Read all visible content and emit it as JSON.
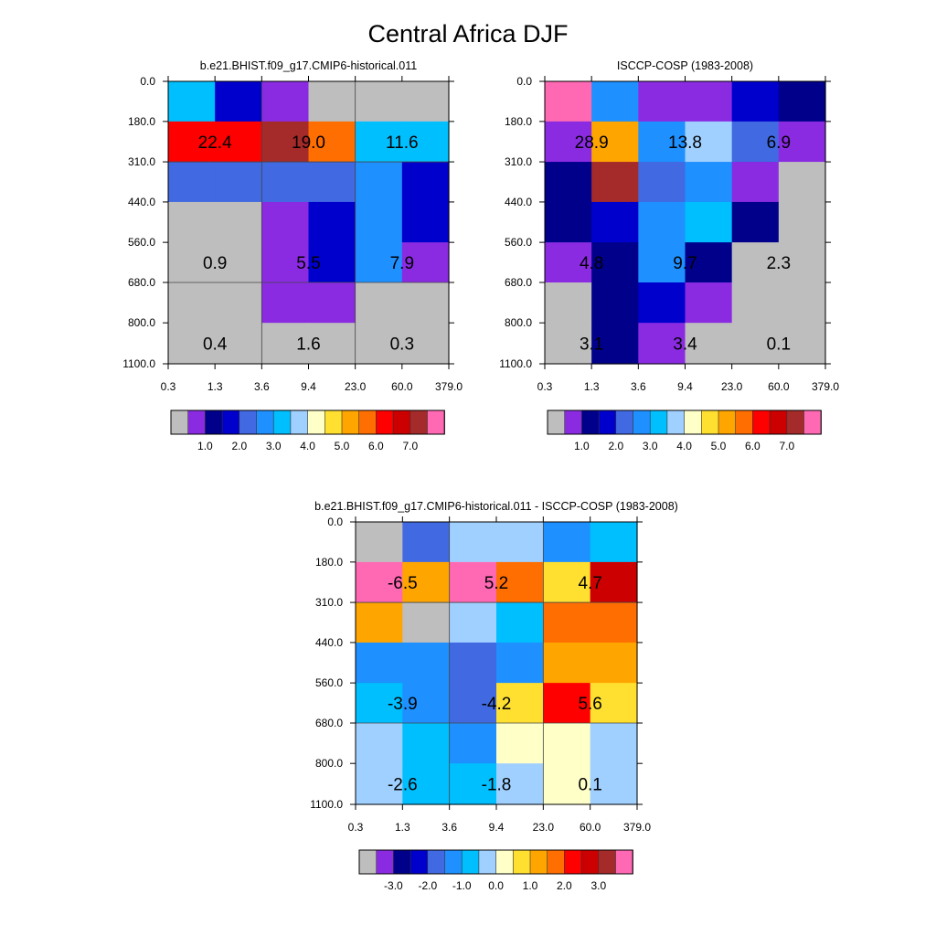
{
  "figure_title": "Central Africa DJF",
  "tau_ticks": [
    "0.3",
    "1.3",
    "3.6",
    "9.4",
    "23.0",
    "60.0",
    "379.0"
  ],
  "pressure_ticks": [
    "0.0",
    "180.0",
    "310.0",
    "440.0",
    "560.0",
    "680.0",
    "800.0",
    "1100.0"
  ],
  "colors": {
    "palette_abs": [
      "#bebebe",
      "#8a2be2",
      "#00008b",
      "#0000cd",
      "#4169e1",
      "#1e90ff",
      "#00bfff",
      "#a0d0ff",
      "#ffffc8",
      "#ffe030",
      "#ffa500",
      "#ff6e00",
      "#ff0000",
      "#cc0000",
      "#a52a2a",
      "#ff69b4"
    ],
    "palette_diff": [
      "#bebebe",
      "#8a2be2",
      "#00008b",
      "#0000cd",
      "#4169e1",
      "#1e90ff",
      "#00bfff",
      "#a0d0ff",
      "#ffffc8",
      "#ffe030",
      "#ffa500",
      "#ff6e00",
      "#ff0000",
      "#cc0000",
      "#a52a2a",
      "#ff69b4"
    ]
  },
  "chart_data": [
    {
      "type": "heatmap",
      "title": "b.e21.BHIST.f09_g17.CMIP6-historical.011",
      "x_ticks": [
        "0.3",
        "1.3",
        "3.6",
        "9.4",
        "23.0",
        "60.0",
        "379.0"
      ],
      "y_ticks": [
        "0.0",
        "180.0",
        "310.0",
        "440.0",
        "560.0",
        "680.0",
        "800.0",
        "1100.0"
      ],
      "palette": "palette_abs",
      "grid": true,
      "cell_color_index": [
        [
          6,
          3,
          1,
          0,
          0,
          0
        ],
        [
          12,
          12,
          14,
          11,
          6,
          6
        ],
        [
          4,
          4,
          4,
          4,
          5,
          3
        ],
        [
          0,
          0,
          1,
          3,
          5,
          3
        ],
        [
          0,
          0,
          1,
          3,
          5,
          1
        ],
        [
          0,
          0,
          1,
          1,
          0,
          0
        ],
        [
          0,
          0,
          0,
          0,
          0,
          0
        ]
      ],
      "cell_labels": [
        {
          "text": "22.4",
          "row": 1,
          "col": 0
        },
        {
          "text": "19.0",
          "row": 1,
          "col": 2
        },
        {
          "text": "11.6",
          "row": 1,
          "col": 4
        },
        {
          "text": "0.9",
          "row": 4,
          "col": 0
        },
        {
          "text": "5.5",
          "row": 4,
          "col": 2
        },
        {
          "text": "7.9",
          "row": 4,
          "col": 4
        },
        {
          "text": "0.4",
          "row": 6,
          "col": 0
        },
        {
          "text": "1.6",
          "row": 6,
          "col": 2
        },
        {
          "text": "0.3",
          "row": 6,
          "col": 4
        }
      ],
      "colorbar_labels": [
        "1.0",
        "2.0",
        "3.0",
        "4.0",
        "5.0",
        "6.0",
        "7.0"
      ]
    },
    {
      "type": "heatmap",
      "title": "ISCCP-COSP (1983-2008)",
      "x_ticks": [
        "0.3",
        "1.3",
        "3.6",
        "9.4",
        "23.0",
        "60.0",
        "379.0"
      ],
      "y_ticks": [
        "0.0",
        "180.0",
        "310.0",
        "440.0",
        "560.0",
        "680.0",
        "800.0",
        "1100.0"
      ],
      "palette": "palette_abs",
      "grid": false,
      "cell_color_index": [
        [
          15,
          5,
          1,
          1,
          3,
          2
        ],
        [
          1,
          10,
          5,
          7,
          4,
          1
        ],
        [
          2,
          14,
          4,
          5,
          1,
          0
        ],
        [
          2,
          3,
          5,
          6,
          2,
          0
        ],
        [
          1,
          2,
          5,
          2,
          0,
          0
        ],
        [
          0,
          2,
          3,
          1,
          0,
          0
        ],
        [
          0,
          2,
          1,
          0,
          0,
          0
        ]
      ],
      "cell_labels": [
        {
          "text": "28.9",
          "row": 1,
          "col": 0
        },
        {
          "text": "13.8",
          "row": 1,
          "col": 2
        },
        {
          "text": "6.9",
          "row": 1,
          "col": 4
        },
        {
          "text": "4.8",
          "row": 4,
          "col": 0
        },
        {
          "text": "9.7",
          "row": 4,
          "col": 2
        },
        {
          "text": "2.3",
          "row": 4,
          "col": 4
        },
        {
          "text": "3.1",
          "row": 6,
          "col": 0
        },
        {
          "text": "3.4",
          "row": 6,
          "col": 2
        },
        {
          "text": "0.1",
          "row": 6,
          "col": 4
        }
      ],
      "colorbar_labels": [
        "1.0",
        "2.0",
        "3.0",
        "4.0",
        "5.0",
        "6.0",
        "7.0"
      ]
    },
    {
      "type": "heatmap",
      "title": "b.e21.BHIST.f09_g17.CMIP6-historical.011 - ISCCP-COSP (1983-2008)",
      "x_ticks": [
        "0.3",
        "1.3",
        "3.6",
        "9.4",
        "23.0",
        "60.0",
        "379.0"
      ],
      "y_ticks": [
        "0.0",
        "180.0",
        "310.0",
        "440.0",
        "560.0",
        "680.0",
        "800.0",
        "1100.0"
      ],
      "palette": "palette_diff",
      "grid": true,
      "cell_color_index": [
        [
          0,
          4,
          7,
          7,
          5,
          6
        ],
        [
          15,
          10,
          15,
          11,
          9,
          13
        ],
        [
          10,
          0,
          7,
          6,
          11,
          11
        ],
        [
          5,
          5,
          4,
          5,
          10,
          10
        ],
        [
          6,
          5,
          4,
          9,
          12,
          9
        ],
        [
          7,
          6,
          5,
          8,
          8,
          7
        ],
        [
          7,
          6,
          6,
          7,
          8,
          7
        ]
      ],
      "cell_labels": [
        {
          "text": "-6.5",
          "row": 1,
          "col": 0
        },
        {
          "text": "5.2",
          "row": 1,
          "col": 2
        },
        {
          "text": "4.7",
          "row": 1,
          "col": 4
        },
        {
          "text": "-3.9",
          "row": 4,
          "col": 0
        },
        {
          "text": "-4.2",
          "row": 4,
          "col": 2
        },
        {
          "text": "5.6",
          "row": 4,
          "col": 4
        },
        {
          "text": "-2.6",
          "row": 6,
          "col": 0
        },
        {
          "text": "-1.8",
          "row": 6,
          "col": 2
        },
        {
          "text": "0.1",
          "row": 6,
          "col": 4
        }
      ],
      "colorbar_labels": [
        "-3.0",
        "-2.0",
        "-1.0",
        "0.0",
        "1.0",
        "2.0",
        "3.0"
      ]
    }
  ]
}
